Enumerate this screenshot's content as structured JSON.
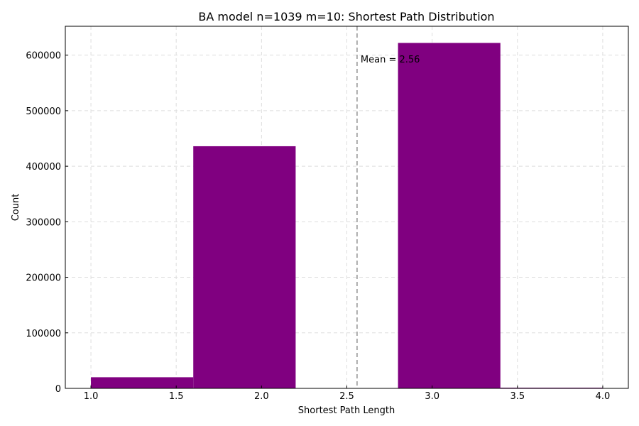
{
  "chart_data": {
    "type": "bar",
    "title": "BA model n=1039 m=10: Shortest Path Distribution",
    "xlabel": "Shortest Path Length",
    "ylabel": "Count",
    "xlim": [
      0.85,
      4.15
    ],
    "ylim": [
      0,
      652000
    ],
    "xticks": [
      1.0,
      1.5,
      2.0,
      2.5,
      3.0,
      3.5,
      4.0
    ],
    "xtick_labels": [
      "1.0",
      "1.5",
      "2.0",
      "2.5",
      "3.0",
      "3.5",
      "4.0"
    ],
    "yticks": [
      0,
      100000,
      200000,
      300000,
      400000,
      500000,
      600000
    ],
    "ytick_labels": [
      "0",
      "100000",
      "200000",
      "300000",
      "400000",
      "500000",
      "600000"
    ],
    "bins": [
      {
        "x0": 1.0,
        "x1": 1.6,
        "value": 20000
      },
      {
        "x0": 1.6,
        "x1": 2.2,
        "value": 436000
      },
      {
        "x0": 2.2,
        "x1": 2.8,
        "value": 0
      },
      {
        "x0": 2.8,
        "x1": 3.4,
        "value": 622000
      },
      {
        "x0": 3.4,
        "x1": 4.0,
        "value": 1200
      }
    ],
    "bar_color": "#800080",
    "mean": 2.56,
    "mean_label": "Mean = 2.56",
    "mean_line_color": "#999999",
    "grid": true
  }
}
